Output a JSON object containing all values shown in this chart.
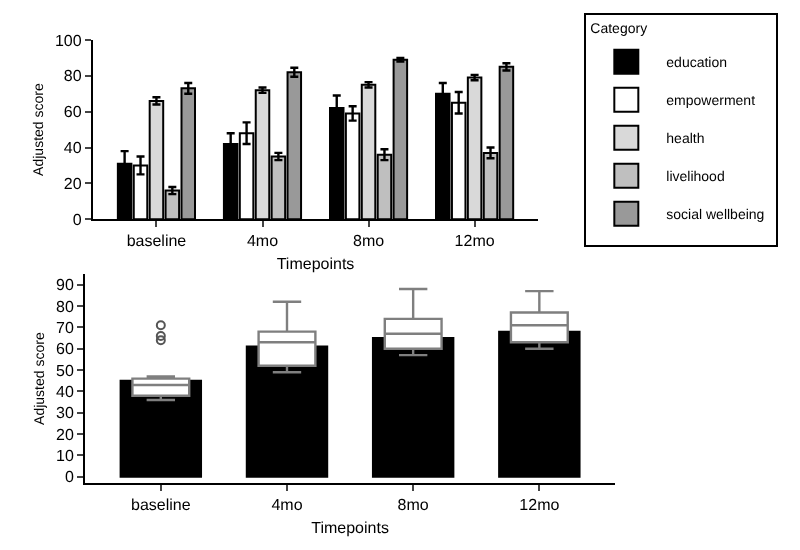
{
  "chart_data": [
    {
      "type": "bar",
      "xlabel": "Timepoints",
      "ylabel": "Adjusted score",
      "legend_title": "Category",
      "legend": "right",
      "categories": [
        "baseline",
        "4mo",
        "8mo",
        "12mo"
      ],
      "ylim": [
        0,
        100
      ],
      "yticks": [
        0,
        20,
        40,
        60,
        80,
        100
      ],
      "series": [
        {
          "name": "education",
          "color": "#000000",
          "values": [
            31,
            42,
            62,
            70
          ],
          "errors": [
            7,
            6,
            7,
            6
          ]
        },
        {
          "name": "empowerment",
          "color": "#ffffff",
          "values": [
            30,
            48,
            59,
            65
          ],
          "errors": [
            5,
            6,
            4,
            6
          ]
        },
        {
          "name": "health",
          "color": "#d9d9d9",
          "values": [
            66,
            72,
            75,
            79
          ],
          "errors": [
            2,
            1.5,
            1.5,
            1.5
          ]
        },
        {
          "name": "livelihood",
          "color": "#bfbfbf",
          "values": [
            16,
            35,
            36,
            37
          ],
          "errors": [
            2,
            2,
            3,
            3
          ]
        },
        {
          "name": "social wellbeing",
          "color": "#999999",
          "values": [
            73,
            82,
            89,
            85
          ],
          "errors": [
            3,
            2.5,
            1,
            2
          ]
        }
      ]
    },
    {
      "type": "bar",
      "xlabel": "Timepoints",
      "ylabel": "Adjusted score",
      "legend": false,
      "categories": [
        "baseline",
        "4mo",
        "8mo",
        "12mo"
      ],
      "ylim": [
        -3,
        95
      ],
      "yticks": [
        0,
        10,
        20,
        30,
        40,
        50,
        60,
        70,
        80,
        90
      ],
      "series": [
        {
          "color": "#000000",
          "values": [
            45,
            61,
            65,
            68
          ]
        },
        {
          "type": "box",
          "color": "#ffffff",
          "boxes": [
            {
              "low": 36,
              "q1": 38,
              "median": 43,
              "q3": 46,
              "high": 47,
              "outliers": [
                64,
                66,
                71
              ]
            },
            {
              "low": 49,
              "q1": 52,
              "median": 63,
              "q3": 68,
              "high": 82
            },
            {
              "low": 57,
              "q1": 60,
              "median": 67,
              "q3": 74,
              "high": 88
            },
            {
              "low": 60,
              "q1": 63,
              "median": 71,
              "q3": 77,
              "high": 87
            }
          ]
        }
      ]
    }
  ]
}
